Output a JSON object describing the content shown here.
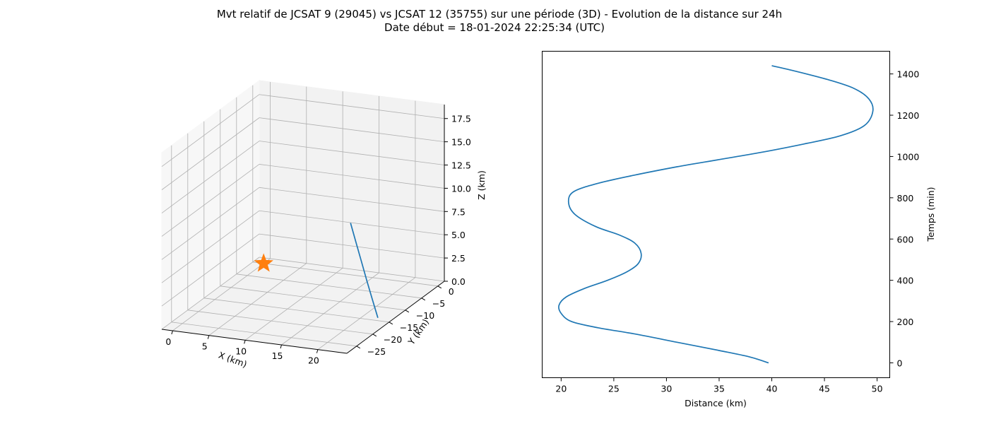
{
  "figure": {
    "title_line1": "Mvt relatif de JCSAT 9 (29045) vs JCSAT 12 (35755) sur une période (3D) - Evolution de la distance sur 24h",
    "title_line2": "Date début = 18-01-2024 22:25:34 (UTC)"
  },
  "chart_data": [
    {
      "type": "line3d",
      "xlabel": "X (km)",
      "ylabel": "Y (km)",
      "zlabel": "Z (km)",
      "x_ticks": [
        0,
        5,
        10,
        15,
        20
      ],
      "y_ticks": [
        0,
        -5,
        -10,
        -15,
        -20,
        -25
      ],
      "z_ticks": [
        0.0,
        2.5,
        5.0,
        7.5,
        10.0,
        12.5,
        15.0,
        17.5
      ],
      "x_tick_labels": [
        "0",
        "5",
        "10",
        "15",
        "20"
      ],
      "y_tick_labels": [
        "0",
        "−5",
        "−10",
        "−15",
        "−20",
        "−25"
      ],
      "z_tick_labels": [
        "0.0",
        "2.5",
        "5.0",
        "7.5",
        "10.0",
        "12.5",
        "15.0",
        "17.5"
      ],
      "xlim": [
        -1.5,
        24
      ],
      "ylim": [
        -28,
        2
      ],
      "zlim": [
        0,
        19
      ],
      "series": [
        {
          "color": "#1f77b4",
          "points": [
            [
              22.0,
              -14.0,
              0.0
            ],
            [
              20.8,
              -13.0,
              1.6
            ],
            [
              19.6,
              -12.0,
              3.2
            ],
            [
              18.4,
              -11.0,
              4.9
            ],
            [
              17.2,
              -10.0,
              6.6
            ],
            [
              16.0,
              -9.0,
              8.3
            ]
          ]
        }
      ],
      "marker": {
        "symbol": "star",
        "color": "#ff7f0e",
        "point": [
          0,
          0,
          0
        ]
      }
    },
    {
      "type": "line",
      "xlabel": "Distance (km)",
      "ylabel": "Temps (min)",
      "x_ticks": [
        20,
        25,
        30,
        35,
        40,
        45,
        50
      ],
      "y_ticks": [
        0,
        200,
        400,
        600,
        800,
        1000,
        1200,
        1400
      ],
      "xlim": [
        18.2,
        51.2
      ],
      "ylim": [
        -72,
        1510
      ],
      "grid": false,
      "series": [
        {
          "color": "#1f77b4",
          "x": [
            39.7,
            37.8,
            35.0,
            31.0,
            27.0,
            23.5,
            21.0,
            20.0,
            19.8,
            20.5,
            22.2,
            24.4,
            26.2,
            27.3,
            27.6,
            27.0,
            25.5,
            23.3,
            21.3,
            20.7,
            21.2,
            23.5,
            27.0,
            31.0,
            35.0,
            39.0,
            43.0,
            46.5,
            48.8,
            49.6,
            49.2,
            47.8,
            45.5,
            42.5,
            40.0
          ],
          "y": [
            0,
            30,
            60,
            100,
            140,
            170,
            200,
            240,
            280,
            320,
            360,
            400,
            440,
            480,
            530,
            580,
            620,
            660,
            720,
            780,
            830,
            870,
            910,
            950,
            985,
            1020,
            1060,
            1100,
            1150,
            1220,
            1280,
            1330,
            1370,
            1410,
            1440
          ]
        }
      ]
    }
  ]
}
